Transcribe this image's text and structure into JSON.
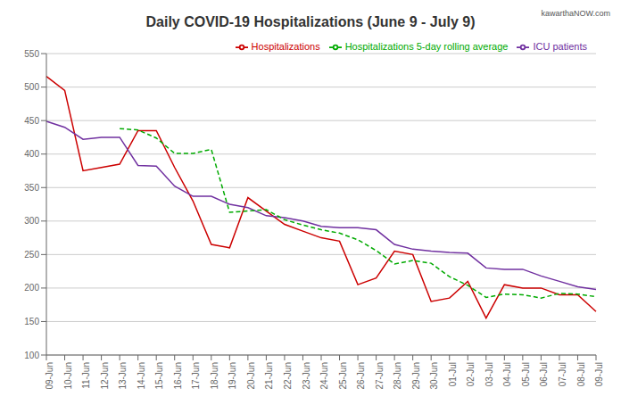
{
  "chart_data": {
    "type": "line",
    "title": "Daily COVID-19 Hospitalizations (June 9 - July 9)",
    "annotations": [
      "kawarthaNOW.com"
    ],
    "categories": [
      "09-Jun",
      "10-Jun",
      "11-Jun",
      "12-Jun",
      "13-Jun",
      "14-Jun",
      "15-Jun",
      "16-Jun",
      "17-Jun",
      "18-Jun",
      "19-Jun",
      "20-Jun",
      "21-Jun",
      "22-Jun",
      "23-Jun",
      "24-Jun",
      "25-Jun",
      "26-Jun",
      "27-Jun",
      "28-Jun",
      "29-Jun",
      "30-Jun",
      "01-Jul",
      "02-Jul",
      "03-Jul",
      "04-Jul",
      "05-Jul",
      "06-Jul",
      "07-Jul",
      "08-Jul",
      "09-Jul"
    ],
    "series": [
      {
        "name": "Hospitalizations",
        "color": "#cc0000",
        "line_style": "solid",
        "values": [
          516,
          495,
          375,
          380,
          385,
          435,
          435,
          380,
          330,
          265,
          260,
          335,
          315,
          295,
          285,
          275,
          270,
          205,
          215,
          255,
          250,
          180,
          185,
          210,
          155,
          205,
          200,
          200,
          190,
          190,
          165
        ]
      },
      {
        "name": "ICU patients",
        "color": "#7030a0",
        "line_style": "solid",
        "values": [
          449,
          440,
          422,
          425,
          425,
          383,
          382,
          352,
          337,
          337,
          325,
          320,
          308,
          305,
          300,
          292,
          290,
          290,
          287,
          265,
          258,
          255,
          253,
          252,
          230,
          228,
          228,
          218,
          210,
          202,
          198
        ]
      },
      {
        "name": "Hospitalizations 5-day rolling average",
        "color": "#00aa00",
        "line_style": "dashed",
        "values": [
          null,
          null,
          null,
          null,
          438,
          436,
          424,
          401,
          401,
          407,
          313,
          315,
          317,
          302,
          294,
          287,
          282,
          272,
          256,
          236,
          241,
          237,
          217,
          204,
          186,
          191,
          190,
          185,
          192,
          191,
          187
        ]
      }
    ],
    "ylim": [
      100,
      550
    ],
    "yticks": [
      100,
      150,
      200,
      250,
      300,
      350,
      400,
      450,
      500,
      550
    ],
    "grid": true,
    "legend": "upper right"
  }
}
